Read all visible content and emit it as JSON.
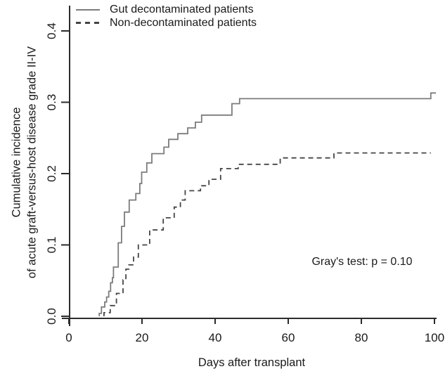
{
  "figure": {
    "background": "#ffffff",
    "axis_color": "#2b2b2b",
    "text_color": "#1a1a1a"
  },
  "legend": {
    "position": "top-left",
    "items": [
      {
        "label": "Gut decontaminated patients",
        "style": "solid",
        "color": "#7c7c7c"
      },
      {
        "label": "Non-decontaminated patients",
        "style": "dashed",
        "color": "#454545"
      }
    ]
  },
  "annotation": {
    "text": "Gray's test: p = 0.10"
  },
  "chart_data": {
    "type": "line",
    "subtype": "step-function-cumulative-incidence",
    "title": "",
    "xlabel": "Days after transplant",
    "ylabel_lines": [
      "Cumulative incidence",
      "of acute graft-versus-host disease grade II-IV"
    ],
    "xlim": [
      0,
      100
    ],
    "ylim": [
      0.0,
      0.4
    ],
    "xticks": [
      0,
      20,
      40,
      60,
      80,
      100
    ],
    "ytick_labels": [
      "0.0",
      "0.1",
      "0.2",
      "0.3",
      "0.4"
    ],
    "grid": false,
    "legend_position": "top-left",
    "annotation": "Gray's test: p = 0.10",
    "series": [
      {
        "name": "Gut decontaminated patients",
        "line": "solid",
        "color": "#7c7c7c",
        "start_value": 0,
        "end_day": 100.4,
        "points": [
          [
            8.3,
            0.004
          ],
          [
            8.9,
            0.013
          ],
          [
            9.8,
            0.02
          ],
          [
            10.3,
            0.027
          ],
          [
            10.9,
            0.035
          ],
          [
            11.4,
            0.047
          ],
          [
            11.9,
            0.054
          ],
          [
            12.2,
            0.069
          ],
          [
            13.5,
            0.103
          ],
          [
            14.4,
            0.126
          ],
          [
            15.2,
            0.146
          ],
          [
            16.5,
            0.163
          ],
          [
            18.3,
            0.172
          ],
          [
            19.4,
            0.186
          ],
          [
            19.9,
            0.202
          ],
          [
            21.3,
            0.215
          ],
          [
            22.7,
            0.228
          ],
          [
            26.0,
            0.237
          ],
          [
            27.3,
            0.248
          ],
          [
            29.8,
            0.256
          ],
          [
            32.5,
            0.264
          ],
          [
            34.6,
            0.272
          ],
          [
            36.3,
            0.282
          ],
          [
            44.6,
            0.298
          ],
          [
            46.7,
            0.305
          ],
          [
            99.0,
            0.313
          ]
        ]
      },
      {
        "name": "Non-decontaminated patients",
        "line": "dashed",
        "color": "#454545",
        "start_value": 0,
        "end_day": 99.0,
        "points": [
          [
            9.6,
            0.005
          ],
          [
            11.3,
            0.015
          ],
          [
            13.0,
            0.032
          ],
          [
            14.8,
            0.051
          ],
          [
            15.6,
            0.066
          ],
          [
            16.4,
            0.072
          ],
          [
            17.7,
            0.083
          ],
          [
            19.0,
            0.1
          ],
          [
            22.1,
            0.121
          ],
          [
            25.8,
            0.138
          ],
          [
            28.8,
            0.153
          ],
          [
            30.5,
            0.163
          ],
          [
            31.8,
            0.176
          ],
          [
            36.0,
            0.183
          ],
          [
            38.3,
            0.192
          ],
          [
            41.5,
            0.207
          ],
          [
            46.3,
            0.213
          ],
          [
            57.8,
            0.222
          ],
          [
            72.5,
            0.229
          ]
        ]
      }
    ]
  }
}
